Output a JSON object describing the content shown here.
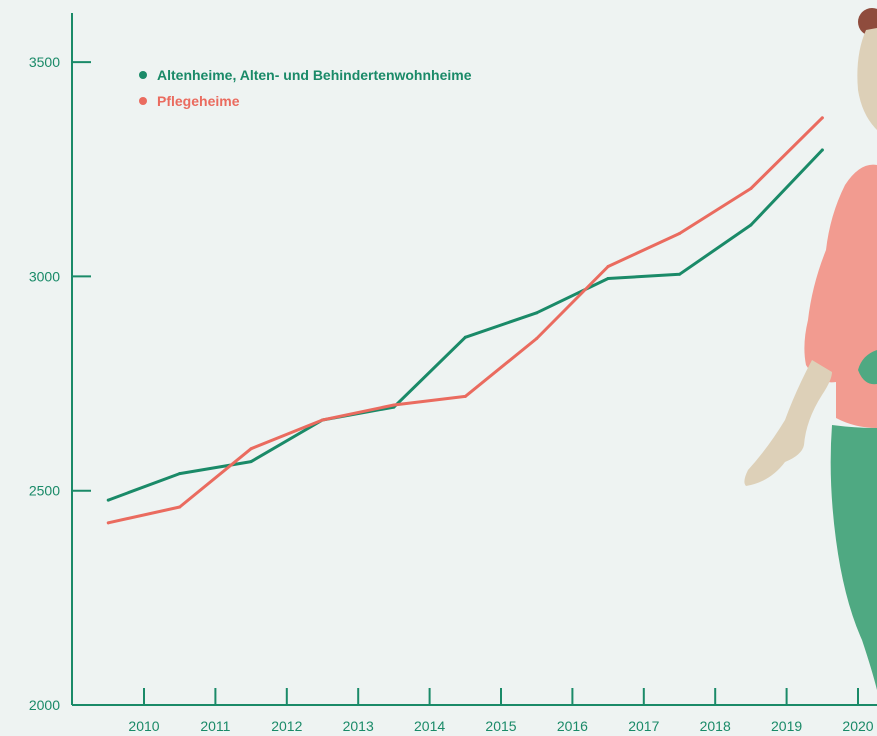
{
  "chart_data": {
    "type": "line",
    "title": "",
    "xlabel": "",
    "ylabel": "",
    "x_ticks": [
      "2010",
      "2011",
      "2012",
      "2013",
      "2014",
      "2015",
      "2016",
      "2017",
      "2018",
      "2019",
      "2020"
    ],
    "y_ticks": [
      "2000",
      "2500",
      "3000",
      "3500"
    ],
    "ylim": [
      2000,
      3600
    ],
    "grid": false,
    "legend_position": "top-left",
    "series": [
      {
        "name": "Altenheime, Alten- und Behindertenwohnheime",
        "color": "#1a8a68",
        "x": [
          2009.5,
          2010.5,
          2011.5,
          2012.5,
          2013.5,
          2014.5,
          2015.5,
          2016.5,
          2017.5,
          2018.5,
          2019.5
        ],
        "values": [
          2478,
          2540,
          2568,
          2665,
          2695,
          2858,
          2915,
          2995,
          3005,
          3120,
          3295
        ]
      },
      {
        "name": "Pflegeheime",
        "color": "#ea6b5f",
        "x": [
          2009.5,
          2010.5,
          2011.5,
          2012.5,
          2013.5,
          2014.5,
          2015.5,
          2016.5,
          2017.5,
          2018.5,
          2019.5
        ],
        "values": [
          2425,
          2462,
          2598,
          2665,
          2700,
          2720,
          2855,
          3023,
          3100,
          3205,
          3370
        ]
      }
    ],
    "axis_color": "#1a8a68"
  }
}
